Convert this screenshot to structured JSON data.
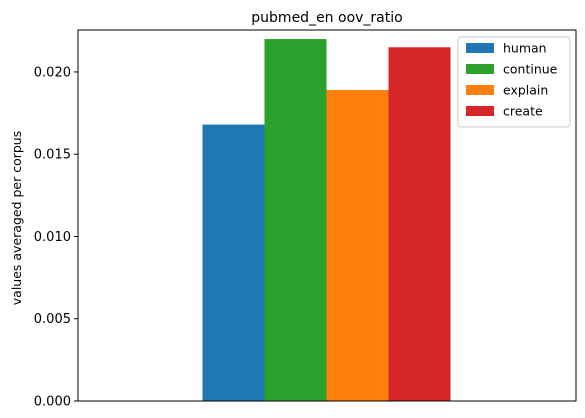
{
  "chart_data": {
    "type": "bar",
    "title": "pubmed_en oov_ratio",
    "xlabel": "",
    "ylabel": "values averaged per corpus",
    "ylim": [
      0,
      0.02255
    ],
    "yticks": [
      "0.000",
      "0.005",
      "0.010",
      "0.015",
      "0.020"
    ],
    "grid": false,
    "legend_position": "top-right",
    "series": [
      {
        "name": "human",
        "values": [
          0.0168
        ],
        "color": "#1f77b4"
      },
      {
        "name": "continue",
        "values": [
          0.022
        ],
        "color": "#2ca02c"
      },
      {
        "name": "explain",
        "values": [
          0.0189
        ],
        "color": "#ff7f0e"
      },
      {
        "name": "create",
        "values": [
          0.0215
        ],
        "color": "#d62728"
      }
    ]
  }
}
